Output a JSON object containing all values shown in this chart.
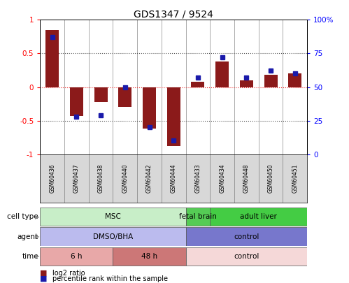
{
  "title": "GDS1347 / 9524",
  "samples": [
    "GSM60436",
    "GSM60437",
    "GSM60438",
    "GSM60440",
    "GSM60442",
    "GSM60444",
    "GSM60433",
    "GSM60434",
    "GSM60448",
    "GSM60450",
    "GSM60451"
  ],
  "log2_ratio": [
    0.85,
    -0.43,
    -0.22,
    -0.3,
    -0.62,
    -0.88,
    0.08,
    0.38,
    0.1,
    0.18,
    0.2
  ],
  "percentile_rank": [
    87,
    28,
    29,
    50,
    20,
    10,
    57,
    72,
    57,
    62,
    60
  ],
  "ylim_left": [
    -1,
    1
  ],
  "ylim_right": [
    0,
    100
  ],
  "left_ticks": [
    -1,
    -0.5,
    0,
    0.5,
    1
  ],
  "left_tick_labels": [
    "-1",
    "-0.5",
    "0",
    "0.5",
    "1"
  ],
  "right_ticks": [
    0,
    25,
    50,
    75,
    100
  ],
  "right_tick_labels": [
    "0",
    "25",
    "50",
    "75",
    "100%"
  ],
  "bar_color": "#8B1a1a",
  "dot_color": "#1a1aaa",
  "zero_line_color": "#ee3333",
  "cell_type_row": {
    "label": "cell type",
    "groups": [
      {
        "name": "MSC",
        "start": 0,
        "end": 5,
        "color": "#c8eec8"
      },
      {
        "name": "fetal brain",
        "start": 6,
        "end": 6,
        "color": "#55cc55"
      },
      {
        "name": "adult liver",
        "start": 7,
        "end": 10,
        "color": "#44cc44"
      }
    ]
  },
  "agent_row": {
    "label": "agent",
    "groups": [
      {
        "name": "DMSO/BHA",
        "start": 0,
        "end": 5,
        "color": "#bbbbee"
      },
      {
        "name": "control",
        "start": 6,
        "end": 10,
        "color": "#7777cc"
      }
    ]
  },
  "time_row": {
    "label": "time",
    "groups": [
      {
        "name": "6 h",
        "start": 0,
        "end": 2,
        "color": "#e8a8a8"
      },
      {
        "name": "48 h",
        "start": 3,
        "end": 5,
        "color": "#cc7777"
      },
      {
        "name": "control",
        "start": 6,
        "end": 10,
        "color": "#f5d8d8"
      }
    ]
  },
  "legend_bar_label": "log2 ratio",
  "legend_dot_label": "percentile rank within the sample"
}
